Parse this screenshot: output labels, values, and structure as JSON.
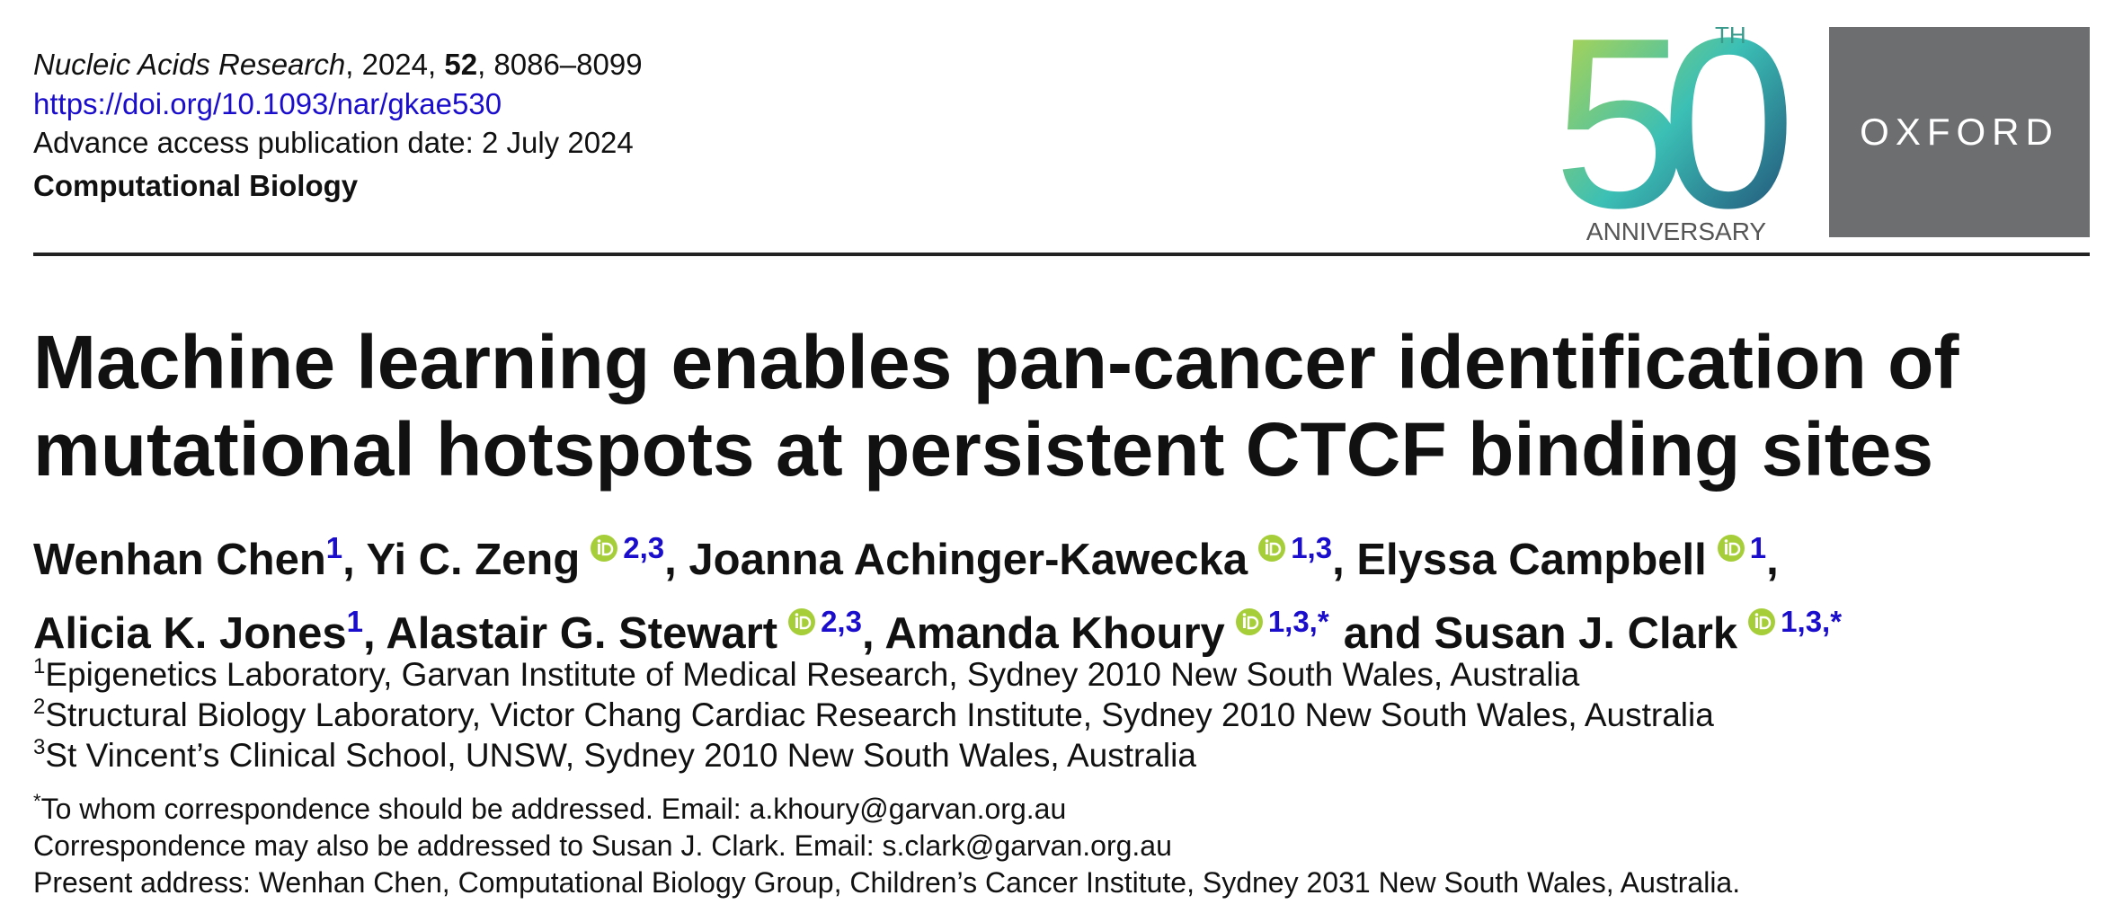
{
  "header": {
    "citation": [
      {
        "text": "Nucleic Acids Research",
        "style": "italic"
      },
      {
        "text": ", 2024, ",
        "style": "normal"
      },
      {
        "text": "52",
        "style": "bold"
      },
      {
        "text": ", 8086–8099",
        "style": "normal"
      }
    ],
    "doi": "https://doi.org/10.1093/nar/gkae530",
    "publication_date": "Advance access publication date: 2 July 2024",
    "section": "Computational Biology"
  },
  "logo": {
    "number": "50",
    "suffix": "TH",
    "caption": "ANNIVERSARY",
    "publisher": "OXFORD"
  },
  "title": "Machine learning enables pan-cancer identification of mutational hotspots at persistent CTCF binding sites",
  "authors": [
    {
      "name": "Wenhan Chen",
      "orcid": false,
      "sup": "1",
      "sep": ","
    },
    {
      "name": "Yi C. Zeng",
      "orcid": true,
      "sup": "2,3",
      "sep": ","
    },
    {
      "name": "Joanna Achinger-Kawecka",
      "orcid": true,
      "sup": "1,3",
      "sep": ","
    },
    {
      "name": "Elyssa Campbell",
      "orcid": true,
      "sup": "1",
      "sep": ","
    },
    {
      "name": "Alicia K. Jones",
      "orcid": false,
      "sup": "1",
      "sep": ","
    },
    {
      "name": "Alastair G. Stewart",
      "orcid": true,
      "sup": "2,3",
      "sep": ","
    },
    {
      "name": "Amanda Khoury",
      "orcid": true,
      "sup": "1,3,*",
      "sep": "and"
    },
    {
      "name": "Susan J. Clark",
      "orcid": true,
      "sup": "1,3,*",
      "sep": ""
    }
  ],
  "affiliations": [
    {
      "marker": "1",
      "text": "Epigenetics Laboratory, Garvan Institute of Medical Research, Sydney 2010 New South Wales, Australia"
    },
    {
      "marker": "2",
      "text": "Structural Biology Laboratory, Victor Chang Cardiac Research Institute, Sydney 2010 New South Wales, Australia"
    },
    {
      "marker": "3",
      "text": "St Vincent’s Clinical School, UNSW, Sydney 2010 New South Wales, Australia"
    }
  ],
  "notes": [
    {
      "marker": "*",
      "text": "To whom correspondence should be addressed. Email: a.khoury@garvan.org.au"
    },
    {
      "marker": "",
      "text": "Correspondence may also be addressed to Susan J. Clark. Email: s.clark@garvan.org.au"
    },
    {
      "marker": "",
      "text": "Present address: Wenhan Chen, Computational Biology Group, Children’s Cancer Institute, Sydney 2031 New South Wales, Australia."
    }
  ]
}
